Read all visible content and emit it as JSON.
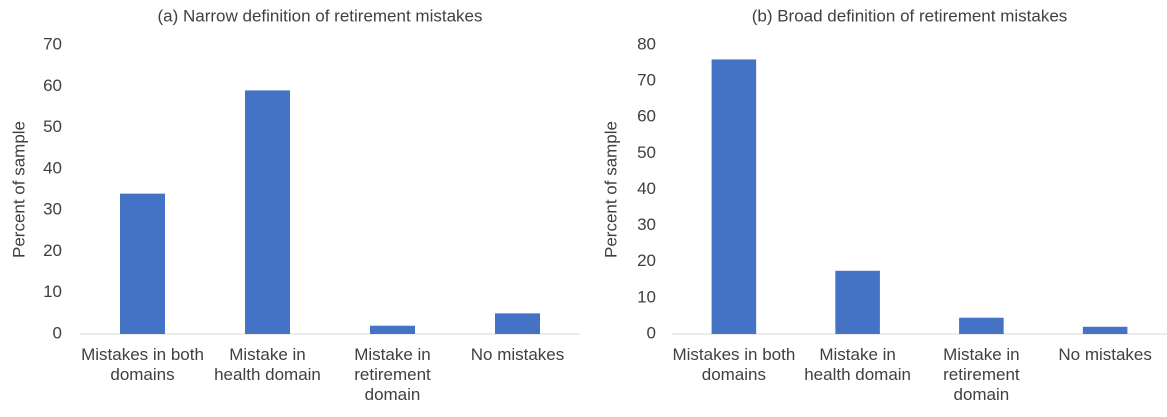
{
  "chart_data": [
    {
      "type": "bar",
      "title": "(a) Narrow definition of retirement mistakes",
      "ylabel": "Percent of sample",
      "categories": [
        "Mistakes in both domains",
        "Mistake in health domain",
        "Mistake in retirement domain",
        "No mistakes"
      ],
      "values": [
        34,
        59,
        2,
        5
      ],
      "color": "#4472c4",
      "ylim": [
        0,
        70
      ],
      "yticks": [
        0,
        10,
        20,
        30,
        40,
        50,
        60,
        70
      ],
      "grid": false
    },
    {
      "type": "bar",
      "title": "(b) Broad definition of retirement mistakes",
      "ylabel": "Percent of sample",
      "categories": [
        "Mistakes in both domains",
        "Mistake in health domain",
        "Mistake in retirement domain",
        "No mistakes"
      ],
      "values": [
        76,
        17.5,
        4.5,
        2
      ],
      "color": "#4472c4",
      "ylim": [
        0,
        80
      ],
      "yticks": [
        0,
        10,
        20,
        30,
        40,
        50,
        60,
        70,
        80
      ],
      "grid": false
    }
  ]
}
